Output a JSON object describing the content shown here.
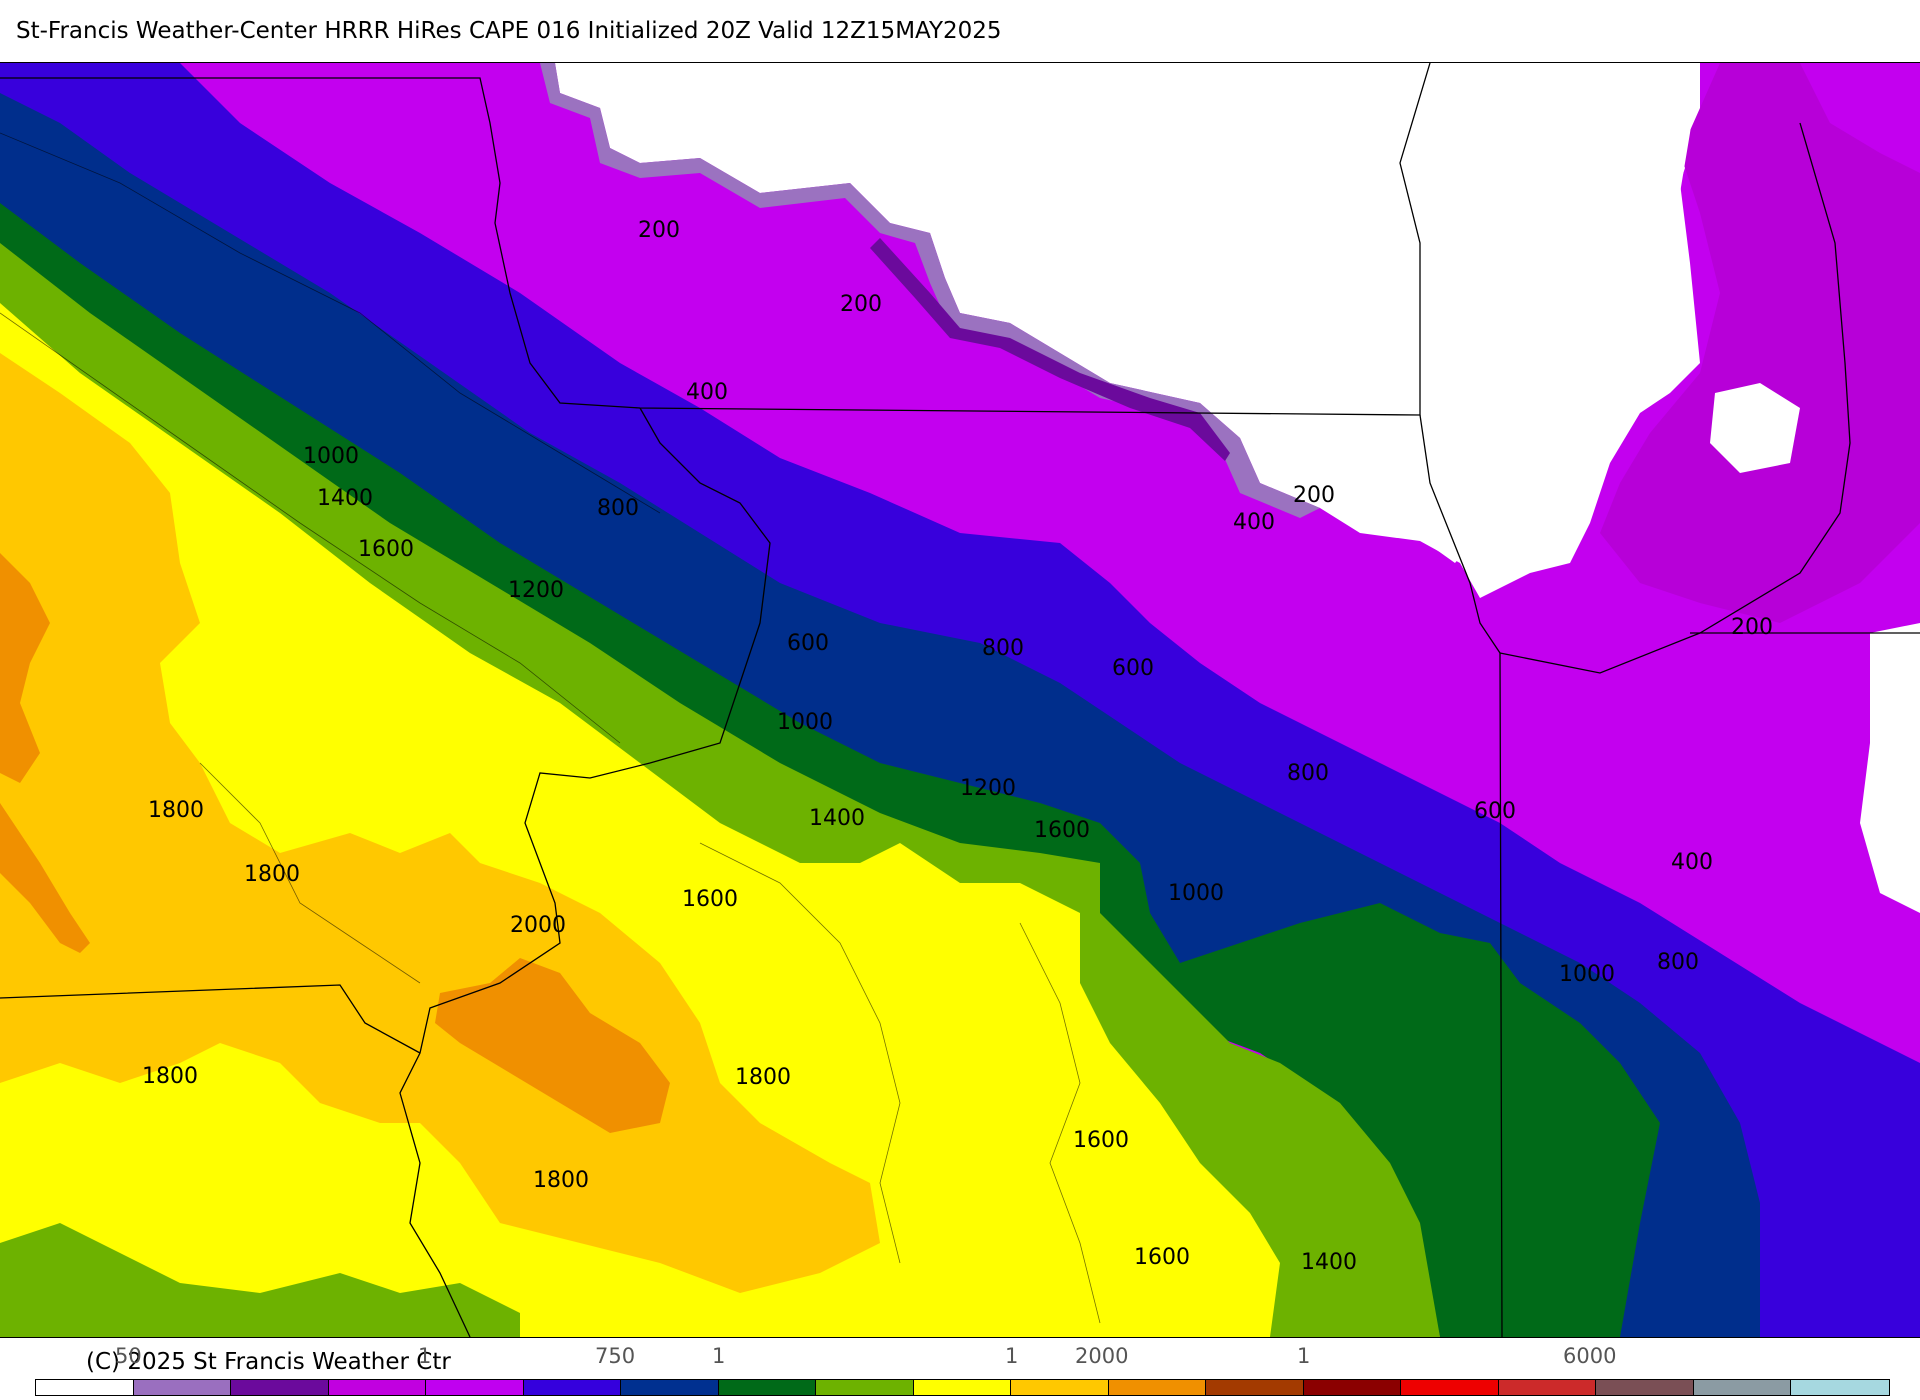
{
  "title": "St-Francis Weather-Center HRRR HiRes CAPE  016 Initialized  20Z Valid 12Z15MAY2025",
  "copyright": "(C) 2025 St Francis Weather Ctr",
  "map": {
    "band_colors": {
      "lt50": "#ffffff",
      "50_100": "#9b72c0",
      "100_150": "#6a0a9e",
      "150_200": "#c000e0",
      "200_400": "#c200f2",
      "400_600": "#3a00dc",
      "600_1000": "#002e8c",
      "1000_1200": "#006818",
      "1200_1400": "#6bb100",
      "1400_1700": "#ffff00",
      "1700_2000": "#ffc800",
      "gt2000": "#f09000"
    },
    "contour_labels": [
      "200",
      "200",
      "400",
      "1000",
      "1400",
      "800",
      "1600",
      "1200",
      "600",
      "800",
      "600",
      "1000",
      "400",
      "200",
      "200",
      "800",
      "1200",
      "1600",
      "1400",
      "600",
      "1800",
      "1800",
      "1600",
      "2000",
      "1000",
      "1000",
      "800",
      "400",
      "1800",
      "1800",
      "1600",
      "1800",
      "1600",
      "1400"
    ]
  },
  "colorbar": {
    "tick_labels": [
      "50",
      "750",
      "2000",
      "6000"
    ],
    "tick_glyphs": [
      "1",
      "1",
      "1",
      "1"
    ],
    "colors": [
      "#ffffff",
      "#9a6fbf",
      "#6b0a9c",
      "#c100e0",
      "#c000f0",
      "#3500dd",
      "#003090",
      "#006a18",
      "#6db200",
      "#ffff00",
      "#ffc800",
      "#f09000",
      "#a33a00",
      "#8b0000",
      "#ee0000",
      "#cc2a2a",
      "#7a4f55",
      "#8b9ba3",
      "#a6d8e0"
    ]
  }
}
